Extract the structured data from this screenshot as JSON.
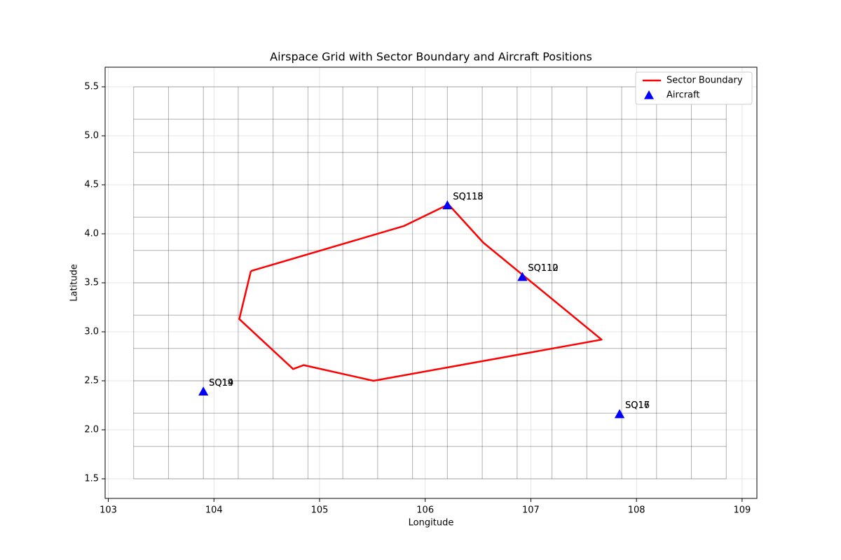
{
  "chart_data": {
    "type": "airspace",
    "title": "Airspace Grid with Sector Boundary and Aircraft Positions",
    "x_label": "Longitude",
    "y_label": "Latitude",
    "xlim": [
      102.97,
      109.14
    ],
    "ylim": [
      1.3,
      5.7
    ],
    "xticks": [
      103,
      104,
      105,
      106,
      107,
      108,
      109
    ],
    "yticks": [
      1.5,
      {
        "value": 2,
        "label": "2.0"
      },
      2.5,
      {
        "value": 3,
        "label": "3.0"
      },
      3.5,
      {
        "value": 4,
        "label": "4.0"
      },
      4.5,
      {
        "value": 5,
        "label": "5.0"
      },
      5.5
    ],
    "grid": true,
    "legend_loc": "upper right",
    "airspace_grid": {
      "color": "#000000",
      "lons": [
        103.24,
        103.57,
        103.9,
        104.23,
        104.56,
        104.89,
        105.22,
        105.55,
        105.88,
        106.21,
        106.54,
        106.87,
        107.2,
        107.53,
        107.86,
        108.19,
        108.52,
        108.85
      ],
      "lats": [
        1.5,
        1.83,
        2.17,
        2.5,
        2.83,
        3.17,
        3.5,
        3.83,
        4.17,
        4.5,
        4.83,
        5.17,
        5.5
      ]
    },
    "series": [
      {
        "name": "Sector Boundary",
        "color": "#ff0000",
        "type": "line",
        "x": [
          104.35,
          105.8,
          106.22,
          106.55,
          107.67,
          105.51,
          104.85,
          104.75,
          104.24,
          104.35
        ],
        "y": [
          3.62,
          4.08,
          4.3,
          3.91,
          2.92,
          2.5,
          2.66,
          2.62,
          3.13,
          3.62
        ]
      },
      {
        "name": "Aircraft",
        "color": "#0000ff",
        "type": "scatter",
        "x": [
          103.9,
          103.9,
          106.21,
          106.21,
          106.92,
          106.92,
          107.84,
          107.84
        ],
        "y": [
          2.39,
          2.39,
          4.29,
          4.29,
          3.56,
          3.56,
          2.16,
          2.16
        ],
        "labels": [
          "SQ19",
          "SQ14",
          "SQ118",
          "SQ115",
          "SQ110",
          "SQ112",
          "SQ16",
          "SQ17"
        ]
      }
    ]
  }
}
